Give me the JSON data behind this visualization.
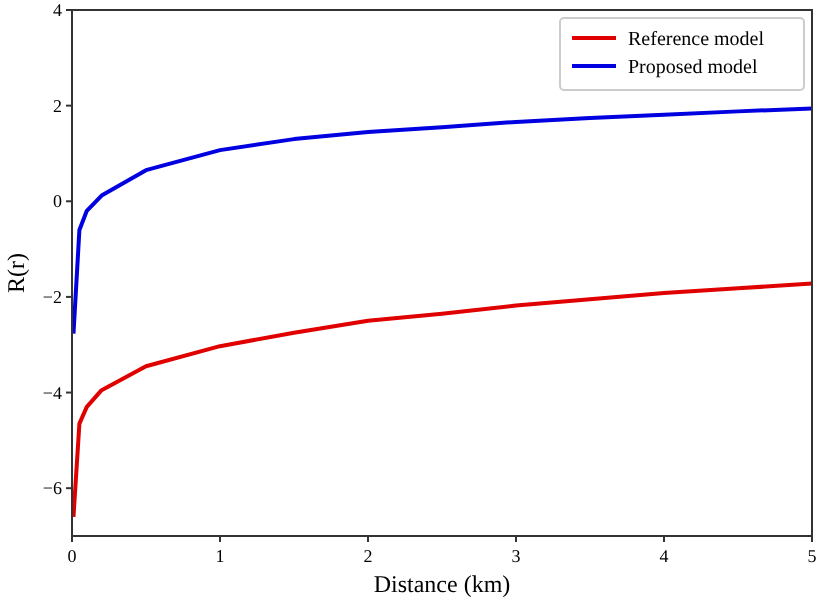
{
  "chart_data": {
    "type": "line",
    "xlabel": "Distance (km)",
    "ylabel": "R(r)",
    "xlim": [
      0,
      5
    ],
    "ylim": [
      -7,
      4
    ],
    "xticks": [
      0,
      1,
      2,
      3,
      4,
      5
    ],
    "yticks": [
      {
        "value": -6,
        "label": "−6"
      },
      {
        "value": -4,
        "label": "−4"
      },
      {
        "value": -2,
        "label": "−2"
      },
      0,
      2,
      4
    ],
    "legend": "top right",
    "grid": false,
    "marker": "none",
    "line_style": "solid",
    "x": [
      0.01,
      0.05,
      0.1,
      0.2,
      0.5,
      1,
      1.5,
      2,
      2.5,
      3,
      3.5,
      4,
      4.5,
      5
    ],
    "series": [
      {
        "name": "Reference model",
        "color": "#e00000",
        "values": [
          -6.6,
          -4.65,
          -4.3,
          -3.95,
          -3.45,
          -3.03,
          -2.75,
          -2.5,
          -2.35,
          -2.18,
          -2.05,
          -1.92,
          -1.82,
          -1.72
        ]
      },
      {
        "name": "Proposed model",
        "color": "#0000e0",
        "values": [
          -2.77,
          -0.6,
          -0.2,
          0.12,
          0.65,
          1.07,
          1.3,
          1.45,
          1.55,
          1.66,
          1.74,
          1.81,
          1.88,
          1.94
        ]
      }
    ]
  }
}
